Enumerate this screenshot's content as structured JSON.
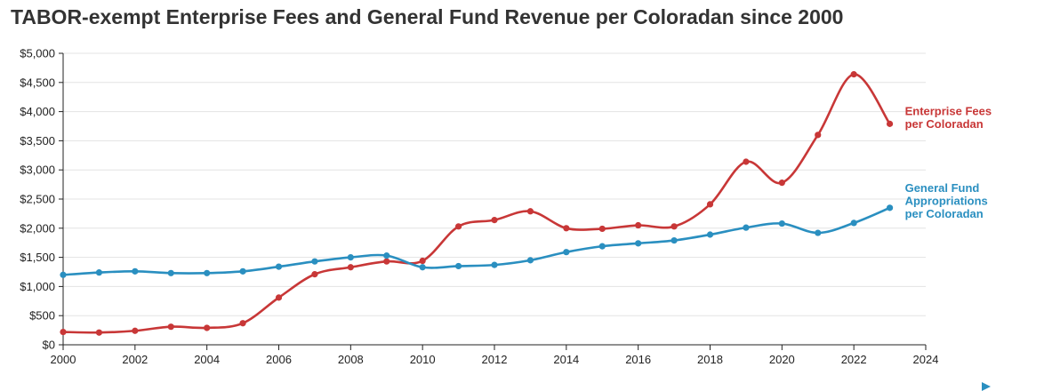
{
  "chart_data": {
    "type": "line",
    "title": "TABOR-exempt Enterprise Fees and General Fund Revenue per Coloradan since 2000",
    "xlabel": "",
    "ylabel": "",
    "xlim": [
      2000,
      2024
    ],
    "ylim": [
      0,
      5000
    ],
    "x_ticks": [
      "2000",
      "2002",
      "2004",
      "2006",
      "2008",
      "2010",
      "2012",
      "2014",
      "2016",
      "2018",
      "2020",
      "2022",
      "2024"
    ],
    "y_ticks": [
      "$0",
      "$500",
      "$1,000",
      "$1,500",
      "$2,000",
      "$2,500",
      "$3,000",
      "$3,500",
      "$4,000",
      "$4,500",
      "$5,000"
    ],
    "grid": true,
    "x": [
      2000,
      2001,
      2002,
      2003,
      2004,
      2005,
      2006,
      2007,
      2008,
      2009,
      2010,
      2011,
      2012,
      2013,
      2014,
      2015,
      2016,
      2017,
      2018,
      2019,
      2020,
      2021,
      2022,
      2023
    ],
    "series": [
      {
        "name": "Enterprise Fees per Coloradan",
        "label_lines": [
          "Enterprise Fees",
          "per Coloradan"
        ],
        "color": "#c83737",
        "values": [
          220,
          210,
          240,
          310,
          290,
          370,
          810,
          1210,
          1330,
          1430,
          1440,
          2030,
          2140,
          2290,
          2000,
          1990,
          2050,
          2030,
          2410,
          3140,
          2780,
          3600,
          4640,
          3790
        ]
      },
      {
        "name": "General Fund Appropriations per Coloradan",
        "label_lines": [
          "General Fund",
          "Appropriations",
          "per Coloradan"
        ],
        "color": "#2a8fc0",
        "values": [
          1200,
          1240,
          1260,
          1230,
          1230,
          1260,
          1340,
          1430,
          1500,
          1530,
          1330,
          1350,
          1370,
          1450,
          1590,
          1690,
          1740,
          1790,
          1890,
          2010,
          2080,
          1920,
          2090,
          2350
        ]
      }
    ]
  }
}
